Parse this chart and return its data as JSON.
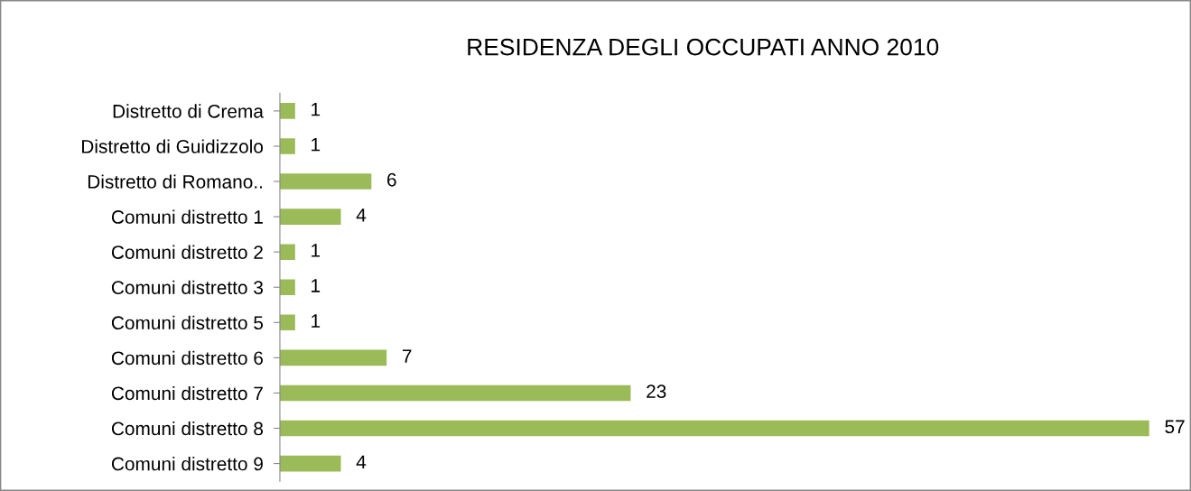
{
  "chart_data": {
    "type": "bar",
    "orientation": "horizontal",
    "title": "RESIDENZA DEGLI OCCUPATI ANNO 2010",
    "categories": [
      "Distretto di Crema",
      "Distretto di Guidizzolo",
      "Distretto di Romano..",
      "Comuni distretto 1",
      "Comuni distretto 2",
      "Comuni distretto 3",
      "Comuni distretto 5",
      "Comuni distretto 6",
      "Comuni distretto 7",
      "Comuni distretto 8",
      "Comuni distretto 9"
    ],
    "values": [
      1,
      1,
      6,
      4,
      1,
      1,
      1,
      7,
      23,
      57,
      4
    ],
    "color": "#9bbb59",
    "data_labels": true,
    "grid": false,
    "legend": false
  }
}
